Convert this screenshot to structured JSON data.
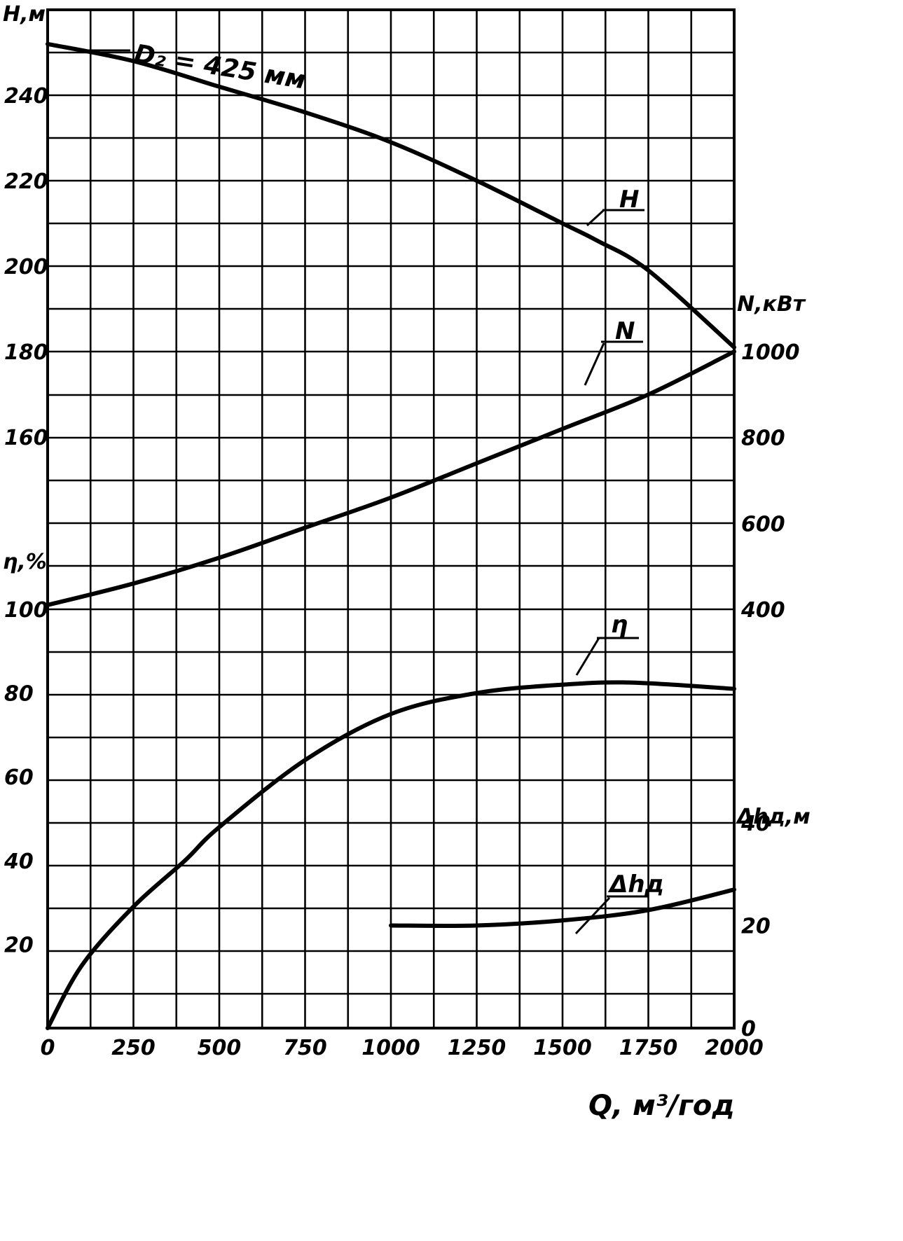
{
  "chart_data": {
    "type": "line",
    "xlabel": "Q, м³/год",
    "x_ticks": [
      "0",
      "250",
      "500",
      "750",
      "1000",
      "1250",
      "1500",
      "1750",
      "2000"
    ],
    "xlim": [
      0,
      2000
    ],
    "grid": true,
    "axes": {
      "H": {
        "label": "H,м",
        "side": "left",
        "ticks": [
          "240",
          "220",
          "200",
          "180",
          "160"
        ],
        "ylim": [
          100,
          260
        ]
      },
      "eta": {
        "label": "η,%",
        "side": "left",
        "ticks": [
          "100",
          "80",
          "60",
          "40",
          "20"
        ],
        "ylim": [
          0,
          100
        ]
      },
      "N": {
        "label": "N,кВт",
        "side": "right",
        "ticks": [
          "1000",
          "800",
          "600",
          "400"
        ],
        "ylim": [
          400,
          1000
        ]
      },
      "dh": {
        "label": "Δhд,м",
        "side": "right",
        "ticks": [
          "40",
          "20",
          "0"
        ],
        "ylim": [
          0,
          40
        ]
      }
    },
    "annotation": "D₂ = 425 мм",
    "series": [
      {
        "name": "H",
        "axis": "H",
        "x": [
          0,
          250,
          500,
          750,
          1000,
          1250,
          1500,
          1600,
          1750,
          2000
        ],
        "y": [
          252,
          248,
          242,
          236,
          229,
          220,
          210,
          206,
          199,
          181
        ]
      },
      {
        "name": "N",
        "axis": "N",
        "x": [
          0,
          250,
          500,
          750,
          1000,
          1250,
          1500,
          1750,
          2000
        ],
        "y": [
          410,
          460,
          520,
          590,
          660,
          740,
          820,
          900,
          1000
        ]
      },
      {
        "name": "η",
        "axis": "eta",
        "x": [
          0,
          100,
          250,
          400,
          500,
          750,
          1000,
          1250,
          1500,
          1700,
          2000
        ],
        "y": [
          0,
          15,
          29,
          40,
          48,
          64,
          75,
          80,
          82,
          82.5,
          81
        ]
      },
      {
        "name": "Δhд",
        "axis": "dh",
        "x": [
          1000,
          1250,
          1500,
          1750,
          2000
        ],
        "y": [
          20,
          20,
          21,
          23,
          27
        ]
      }
    ]
  }
}
